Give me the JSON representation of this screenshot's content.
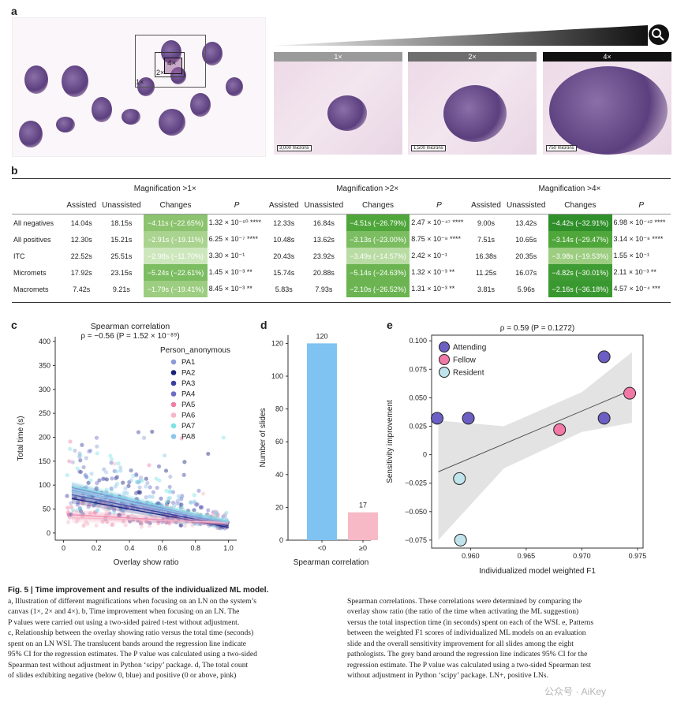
{
  "panel_a": {
    "letter": "a",
    "overview_labels": [
      "4×",
      "2×",
      "1×"
    ],
    "thumbs": [
      {
        "label": "1×",
        "scalebar": "3,000 microns",
        "header_color": "#9a9a9a"
      },
      {
        "label": "2×",
        "scalebar": "1,500 microns",
        "header_color": "#6e6e6e"
      },
      {
        "label": "4×",
        "scalebar": "750 microns",
        "header_color": "#111111"
      }
    ],
    "magnifier_icon": "search-icon"
  },
  "panel_b": {
    "letter": "b",
    "groups": [
      "Magnification >1×",
      "Magnification >2×",
      "Magnification >4×"
    ],
    "col_headers": [
      "Assisted",
      "Unassisted",
      "Changes",
      "P"
    ],
    "rows": [
      {
        "label": "All negatives",
        "cells": [
          [
            "14.04s",
            "18.15s",
            "−4.11s (−22.65%)",
            "1.32 × 10⁻⁵⁰ ****"
          ],
          [
            "12.33s",
            "16.84s",
            "−4.51s (−26.79%)",
            "2.47 × 10⁻⁴⁷ ****"
          ],
          [
            "9.00s",
            "13.42s",
            "−4.42s (−32.91%)",
            "6.98 × 10⁻⁴² ****"
          ]
        ],
        "shade": [
          "#8cc36e",
          "#4fa63a",
          "#2f8f2a"
        ]
      },
      {
        "label": "All positives",
        "cells": [
          [
            "12.30s",
            "15.21s",
            "−2.91s (−19.11%)",
            "6.25 × 10⁻⁷ ****"
          ],
          [
            "10.48s",
            "13.62s",
            "−3.13s (−23.00%)",
            "8.75 × 10⁻⁸ ****"
          ],
          [
            "7.51s",
            "10.65s",
            "−3.14s (−29.47%)",
            "3.14 × 10⁻⁸ ****"
          ]
        ],
        "shade": [
          "#a9d38f",
          "#7cbd62",
          "#4fa63a"
        ]
      },
      {
        "label": "ITC",
        "cells": [
          [
            "22.52s",
            "25.51s",
            "−2.98s (−11.70%)",
            "3.30 × 10⁻¹"
          ],
          [
            "20.43s",
            "23.92s",
            "−3.49s (−14.57%)",
            "2.42 × 10⁻¹"
          ],
          [
            "16.38s",
            "20.35s",
            "−3.98s (−19.53%)",
            "1.55 × 10⁻¹"
          ]
        ],
        "shade": [
          "#cde7bd",
          "#b9dca4",
          "#9ccd80"
        ]
      },
      {
        "label": "Micromets",
        "cells": [
          [
            "17.92s",
            "23.15s",
            "−5.24s (−22.61%)",
            "1.45 × 10⁻³ **"
          ],
          [
            "15.74s",
            "20.88s",
            "−5.14s (−24.63%)",
            "1.32 × 10⁻³ **"
          ],
          [
            "11.25s",
            "16.07s",
            "−4.82s (−30.01%)",
            "2.11 × 10⁻³ **"
          ]
        ],
        "shade": [
          "#7cbd62",
          "#6cb452",
          "#3f9b33"
        ]
      },
      {
        "label": "Macromets",
        "cells": [
          [
            "7.42s",
            "9.21s",
            "−1.79s (−19.41%)",
            "8.45 × 10⁻³ **"
          ],
          [
            "5.83s",
            "7.93s",
            "−2.10s (−26.52%)",
            "1.31 × 10⁻³ **"
          ],
          [
            "3.81s",
            "5.96s",
            "−2.16s (−36.18%)",
            "4.57 × 10⁻⁴ ***"
          ]
        ],
        "shade": [
          "#9ccd80",
          "#6cb452",
          "#3a9830"
        ]
      }
    ]
  },
  "chart_data": [
    {
      "panel": "c",
      "type": "scatter",
      "title": "Spearman correlation",
      "subtitle": "ρ = −0.56 (P = 1.52 × 10⁻⁸⁹)",
      "xlabel": "Overlay show ratio",
      "ylabel": "Total time (s)",
      "xlim": [
        -0.05,
        1.05
      ],
      "ylim": [
        -15,
        410
      ],
      "xticks": [
        0,
        0.2,
        0.4,
        0.6,
        0.8,
        1.0
      ],
      "xtick_labels": [
        "0",
        "0.2",
        "0.4",
        "0.6",
        "0.8",
        "1.0"
      ],
      "yticks": [
        0,
        50,
        100,
        150,
        200,
        250,
        300,
        350,
        400
      ],
      "legend_title": "Person_anonymous",
      "series": [
        {
          "name": "PA1",
          "color": "#8f9bd6",
          "line": [
            [
              0.05,
              90
            ],
            [
              1.0,
              18
            ]
          ]
        },
        {
          "name": "PA2",
          "color": "#17217a",
          "line": [
            [
              0.05,
              72
            ],
            [
              1.0,
              12
            ]
          ]
        },
        {
          "name": "PA3",
          "color": "#3a3fa0",
          "line": [
            [
              0.05,
              80
            ],
            [
              1.0,
              15
            ]
          ]
        },
        {
          "name": "PA4",
          "color": "#6c6cc6",
          "line": [
            [
              0.05,
              95
            ],
            [
              1.0,
              20
            ]
          ]
        },
        {
          "name": "PA5",
          "color": "#ef7ea6",
          "line": [
            [
              0.05,
              38
            ],
            [
              1.0,
              20
            ]
          ]
        },
        {
          "name": "PA6",
          "color": "#f4b6c8",
          "line": [
            [
              0.05,
              32
            ],
            [
              1.0,
              22
            ]
          ]
        },
        {
          "name": "PA7",
          "color": "#7fe3e4",
          "line": [
            [
              0.05,
              98
            ],
            [
              1.0,
              25
            ]
          ]
        },
        {
          "name": "PA8",
          "color": "#8cc6e8",
          "line": [
            [
              0.05,
              88
            ],
            [
              1.0,
              22
            ]
          ]
        }
      ]
    },
    {
      "panel": "d",
      "type": "bar",
      "categories": [
        "<0",
        "≥0"
      ],
      "values": [
        120,
        17
      ],
      "data_labels": [
        "120",
        "17"
      ],
      "colors": [
        "#7ec3f2",
        "#f7b9c6"
      ],
      "xlabel": "Spearman correlation",
      "ylabel": "Number of slides",
      "ylim": [
        0,
        125
      ],
      "yticks": [
        0,
        20,
        40,
        60,
        80,
        100,
        120
      ]
    },
    {
      "panel": "e",
      "type": "scatter",
      "title": "ρ = 0.59 (P = 0.1272)",
      "xlabel": "Individualized model weighted F1",
      "ylabel": "Sensitivity improvement",
      "xlim": [
        0.9565,
        0.9755
      ],
      "ylim": [
        -0.082,
        0.105
      ],
      "xticks": [
        0.96,
        0.965,
        0.97,
        0.975
      ],
      "xtick_labels": [
        "0.960",
        "0.965",
        "0.970",
        "0.975"
      ],
      "yticks": [
        -0.075,
        -0.05,
        -0.025,
        0,
        0.025,
        0.05,
        0.075,
        0.1
      ],
      "ytick_labels": [
        "−0.075",
        "−0.050",
        "−0.025",
        "0",
        "0.025",
        "0.050",
        "0.075",
        "0.100"
      ],
      "series": [
        {
          "name": "Attending",
          "color": "#6b5fc4",
          "points": [
            [
              0.957,
              0.032
            ],
            [
              0.9598,
              0.032
            ],
            [
              0.972,
              0.086
            ],
            [
              0.972,
              0.032
            ]
          ]
        },
        {
          "name": "Fellow",
          "color": "#f279a6",
          "points": [
            [
              0.968,
              0.022
            ],
            [
              0.9743,
              0.054
            ]
          ]
        },
        {
          "name": "Resident",
          "color": "#bfe4ec",
          "points": [
            [
              0.959,
              -0.021
            ],
            [
              0.9591,
              -0.075
            ]
          ]
        }
      ],
      "regression": [
        [
          0.9571,
          -0.015
        ],
        [
          0.9745,
          0.057
        ]
      ]
    }
  ],
  "panel_letters": {
    "c": "c",
    "d": "d",
    "e": "e"
  },
  "caption": {
    "title": "Fig. 5 | Time improvement and results of the individualized ML model.",
    "left": [
      "a, Illustration of different magnifications when focusing on an LN on the system’s",
      "canvas (1×, 2× and 4×). b, Time improvement when focusing on an LN. The",
      "P values were carried out using a two-sided paired t-test without adjustment.",
      "c, Relationship between the overlay showing ratio versus the total time (seconds)",
      "spent on an LN WSI. The translucent bands around the regression line indicate",
      "95% CI for the regression estimates. The P value was calculated using a two-sided",
      "Spearman test without adjustment in Python ‘scipy’ package. d, The total count",
      "of slides exhibiting negative (below 0, blue) and positive (0 or above, pink)"
    ],
    "right": [
      "Spearman correlations. These correlations were determined by comparing the",
      "overlay show ratio (the ratio of the time when activating the ML suggestion)",
      "versus the total inspection time (in seconds) spent on each of the WSI. e, Patterns",
      "between the weighted F1 scores of individualized ML models on an evaluation",
      "slide and the overall sensitivity improvement for all slides among the eight",
      "pathologists. The grey band around the regression line indicates 95% CI for the",
      "regression estimate. The P value was calculated using a two-sided Spearman test",
      "without adjustment in Python ‘scipy’ package. LN+, positive LNs."
    ]
  },
  "watermark": "公众号 · AiKey"
}
